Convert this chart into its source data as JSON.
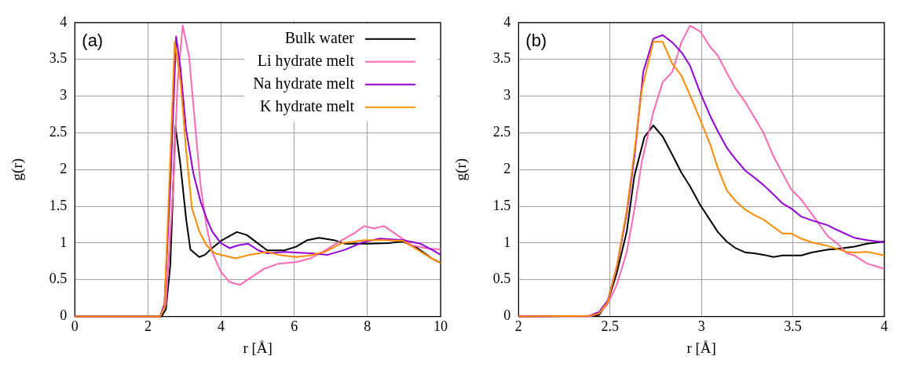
{
  "chart_data": [
    {
      "type": "line",
      "title": "(a)",
      "xlabel": "r [Å]",
      "ylabel": "g(r)",
      "xlim": [
        0,
        10
      ],
      "xticks": [
        0,
        2,
        4,
        6,
        8,
        10
      ],
      "ylim": [
        0,
        4
      ],
      "yticks": [
        0,
        0.5,
        1,
        1.5,
        2,
        2.5,
        3,
        3.5,
        4
      ],
      "grid": true,
      "legend": "top right",
      "marker": "none",
      "line_style": "solid",
      "series": [
        {
          "name": "Bulk water",
          "color": "#000000",
          "x": [
            0,
            2.37,
            2.49,
            2.61,
            2.75,
            2.89,
            3.04,
            3.16,
            3.4,
            3.56,
            3.75,
            4.03,
            4.43,
            4.7,
            5.26,
            5.73,
            6.05,
            6.36,
            6.68,
            7.08,
            7.39,
            8.02,
            8.58,
            8.97,
            9.37,
            9.76,
            10
          ],
          "values": [
            0,
            0,
            0.1,
            0.7,
            2.59,
            2.05,
            1.34,
            0.91,
            0.81,
            0.84,
            0.93,
            1.04,
            1.15,
            1.11,
            0.9,
            0.9,
            0.95,
            1.04,
            1.07,
            1.04,
            0.99,
            0.99,
            1,
            1.02,
            0.93,
            0.79,
            0.73
          ]
        },
        {
          "name": "Li hydrate melt",
          "color": "#ff69b4",
          "x": [
            0,
            2.33,
            2.49,
            2.69,
            2.81,
            2.95,
            3.12,
            3.28,
            3.44,
            3.6,
            3.75,
            3.99,
            4.23,
            4.51,
            4.78,
            5.18,
            5.57,
            6.05,
            6.44,
            6.84,
            7.31,
            7.63,
            7.91,
            8.18,
            8.46,
            8.81,
            9.21,
            9.6,
            10
          ],
          "values": [
            0,
            0,
            0.17,
            1.77,
            3.19,
            3.96,
            3.55,
            2.66,
            1.77,
            1.23,
            0.88,
            0.61,
            0.47,
            0.43,
            0.52,
            0.65,
            0.72,
            0.74,
            0.79,
            0.9,
            1.04,
            1.13,
            1.23,
            1.2,
            1.23,
            1.11,
            0.97,
            0.93,
            0.91
          ]
        },
        {
          "name": "Na hydrate melt",
          "color": "#9400d3",
          "x": [
            0,
            2.33,
            2.45,
            2.61,
            2.77,
            2.89,
            3.04,
            3.24,
            3.44,
            3.6,
            3.75,
            3.99,
            4.23,
            4.47,
            4.74,
            5.02,
            5.26,
            5.73,
            6.44,
            6.92,
            7.39,
            7.87,
            8.34,
            8.97,
            9.45,
            9.76,
            10
          ],
          "values": [
            0,
            0,
            0.17,
            1.77,
            3.81,
            3.37,
            2.55,
            1.95,
            1.56,
            1.34,
            1.16,
            1,
            0.93,
            0.97,
            0.99,
            0.9,
            0.86,
            0.88,
            0.86,
            0.84,
            0.91,
            1.01,
            1.06,
            1.04,
            0.99,
            0.91,
            0.84
          ]
        },
        {
          "name": "K hydrate melt",
          "color": "#ff8c00",
          "x": [
            0,
            2.33,
            2.45,
            2.58,
            2.73,
            2.89,
            3.04,
            3.2,
            3.4,
            3.6,
            3.83,
            4.07,
            4.39,
            4.78,
            5.26,
            5.57,
            6.05,
            6.44,
            6.84,
            7.31,
            7.94,
            8.5,
            8.97,
            9.37,
            9.76,
            10
          ],
          "values": [
            0,
            0,
            0.13,
            1.77,
            3.74,
            3.2,
            2.27,
            1.48,
            1.16,
            0.97,
            0.86,
            0.83,
            0.79,
            0.84,
            0.88,
            0.84,
            0.81,
            0.83,
            0.88,
            1,
            1.04,
            1.04,
            1.03,
            0.91,
            0.79,
            0.73
          ]
        }
      ]
    },
    {
      "type": "line",
      "title": "(b)",
      "xlabel": "r [Å]",
      "ylabel": "g(r)",
      "xlim": [
        2,
        4
      ],
      "xticks": [
        2,
        2.5,
        3,
        3.5,
        4
      ],
      "ylim": [
        0,
        4
      ],
      "yticks": [
        0,
        0.5,
        1,
        1.5,
        2,
        2.5,
        3,
        3.5,
        4
      ],
      "grid": true,
      "marker": "none",
      "line_style": "solid",
      "series": [
        {
          "color": "#000000",
          "x": [
            2,
            2.385,
            2.44,
            2.488,
            2.537,
            2.592,
            2.633,
            2.688,
            2.737,
            2.788,
            2.841,
            2.89,
            2.938,
            2.993,
            3.048,
            3.09,
            3.138,
            3.187,
            3.242,
            3.29,
            3.339,
            3.394,
            3.443,
            3.491,
            3.546,
            3.602,
            3.692,
            3.74,
            3.837,
            3.906,
            4
          ],
          "values": [
            0,
            0.01,
            0.02,
            0.2,
            0.59,
            1.16,
            1.91,
            2.44,
            2.6,
            2.45,
            2.2,
            1.96,
            1.77,
            1.52,
            1.31,
            1.15,
            1.02,
            0.93,
            0.87,
            0.86,
            0.84,
            0.81,
            0.83,
            0.83,
            0.83,
            0.87,
            0.91,
            0.92,
            0.95,
            0.99,
            1.02
          ]
        },
        {
          "color": "#ff69b4",
          "x": [
            2,
            2.385,
            2.44,
            2.488,
            2.537,
            2.592,
            2.633,
            2.675,
            2.737,
            2.788,
            2.841,
            2.89,
            2.938,
            2.993,
            3.048,
            3.09,
            3.138,
            3.187,
            3.242,
            3.29,
            3.339,
            3.394,
            3.443,
            3.491,
            3.546,
            3.602,
            3.692,
            3.74,
            3.795,
            3.837,
            3.906,
            4
          ],
          "values": [
            0,
            0,
            0.04,
            0.17,
            0.43,
            0.88,
            1.45,
            2.12,
            2.78,
            3.19,
            3.33,
            3.73,
            3.96,
            3.88,
            3.67,
            3.55,
            3.32,
            3.1,
            2.91,
            2.71,
            2.5,
            2.18,
            1.95,
            1.73,
            1.59,
            1.4,
            1.09,
            1,
            0.86,
            0.83,
            0.72,
            0.65
          ]
        },
        {
          "color": "#9400d3",
          "x": [
            2,
            2.385,
            2.44,
            2.488,
            2.537,
            2.592,
            2.633,
            2.682,
            2.737,
            2.788,
            2.841,
            2.896,
            2.938,
            2.993,
            3.048,
            3.09,
            3.138,
            3.187,
            3.242,
            3.29,
            3.339,
            3.394,
            3.443,
            3.491,
            3.546,
            3.602,
            3.692,
            3.74,
            3.837,
            3.906,
            4
          ],
          "values": [
            0,
            0.01,
            0.06,
            0.22,
            0.67,
            1.41,
            2.16,
            3.33,
            3.78,
            3.83,
            3.73,
            3.58,
            3.41,
            3.05,
            2.73,
            2.52,
            2.3,
            2.14,
            1.98,
            1.89,
            1.79,
            1.66,
            1.54,
            1.47,
            1.36,
            1.31,
            1.24,
            1.18,
            1.07,
            1.04,
            1.01
          ]
        },
        {
          "color": "#ff8c00",
          "x": [
            2,
            2.385,
            2.44,
            2.488,
            2.537,
            2.592,
            2.633,
            2.675,
            2.737,
            2.788,
            2.841,
            2.89,
            2.938,
            2.993,
            3.048,
            3.09,
            3.138,
            3.187,
            3.242,
            3.29,
            3.339,
            3.394,
            3.443,
            3.491,
            3.546,
            3.602,
            3.692,
            3.74,
            3.795,
            3.837,
            3.906,
            4
          ],
          "values": [
            0,
            0.01,
            0.04,
            0.2,
            0.68,
            1.45,
            2.23,
            3.1,
            3.74,
            3.74,
            3.44,
            3.28,
            3.01,
            2.68,
            2.34,
            2.02,
            1.72,
            1.57,
            1.45,
            1.38,
            1.32,
            1.22,
            1.13,
            1.13,
            1.06,
            1.01,
            0.96,
            0.92,
            0.88,
            0.87,
            0.88,
            0.83
          ]
        }
      ]
    }
  ]
}
